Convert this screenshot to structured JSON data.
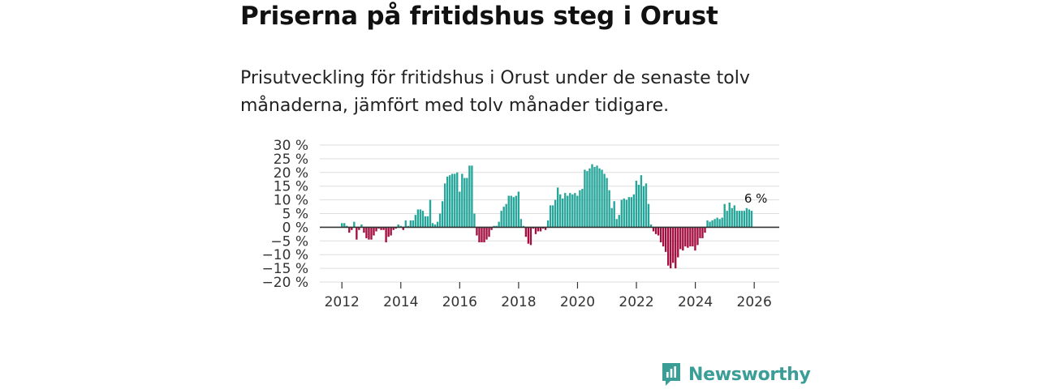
{
  "header": {
    "title": "Priserna på fritidshus steg i Orust",
    "subtitle": "Prisutveckling för fritidshus i Orust under de senaste tolv månaderna, jämfört med tolv månader tidigare."
  },
  "brand": {
    "name": "Newsworthy",
    "color": "#3a9e97"
  },
  "colors": {
    "positive": "#26a69a",
    "negative": "#a30e40",
    "grid": "#dddddd",
    "zero_line": "#333333"
  },
  "chart_data": {
    "type": "bar",
    "title": "Priserna på fritidshus steg i Orust",
    "ylabel": "",
    "xlabel": "",
    "ylim": [
      -20,
      30
    ],
    "yticks": [
      30,
      25,
      20,
      15,
      10,
      5,
      0,
      -5,
      -10,
      -15,
      -20
    ],
    "ytick_labels": [
      "30 %",
      "25 %",
      "20 %",
      "15 %",
      "10 %",
      "5 %",
      "0 %",
      "−5 %",
      "−10 %",
      "−15 %",
      "−20 %"
    ],
    "xticks": [
      2012,
      2014,
      2016,
      2018,
      2020,
      2022,
      2024,
      2026
    ],
    "xlim": [
      2011.25,
      2026.85
    ],
    "x_start": 2012,
    "x_step": 0.0833,
    "annotation": {
      "text": "6 %",
      "x": 2026.0
    },
    "values": [
      1.5,
      1.5,
      0.5,
      -2,
      -1,
      2,
      -4.5,
      -1,
      1,
      -2,
      -4,
      -4.5,
      -4.5,
      -3,
      -1.5,
      -0.5,
      -1,
      -1,
      -5.5,
      -3.5,
      -3,
      -1,
      -0.5,
      1,
      0.5,
      -1,
      2.5,
      0.5,
      2.5,
      2.5,
      4.5,
      6.5,
      6.5,
      6,
      4,
      4,
      10,
      1.5,
      1,
      2,
      5,
      9.5,
      16,
      18.5,
      19,
      19.5,
      19.5,
      20,
      13,
      19.5,
      18,
      18,
      22.5,
      22.5,
      5,
      -3,
      -5.5,
      -5.5,
      -5.5,
      -4.5,
      -3.5,
      -1,
      0.5,
      0.5,
      2,
      6,
      7.5,
      8.5,
      11.5,
      11.5,
      11,
      11.5,
      13,
      3,
      0.5,
      -3.5,
      -6,
      -6.5,
      -0.5,
      -2.5,
      -1.5,
      -1.5,
      -0.5,
      -1,
      2.5,
      8,
      8,
      10,
      14.5,
      12,
      10.5,
      12.5,
      11.5,
      12.5,
      12,
      12.5,
      11.5,
      13.5,
      14,
      21,
      20.5,
      21.5,
      23,
      22,
      22.5,
      21.5,
      21,
      19.5,
      18,
      13.5,
      7,
      9.5,
      3,
      4.5,
      10,
      10.5,
      10,
      11,
      11,
      12,
      17,
      15.5,
      19,
      15,
      16,
      8.5,
      1,
      -1.5,
      -2.5,
      -3,
      -5.5,
      -7,
      -9,
      -14,
      -15,
      -13,
      -15,
      -11,
      -8,
      -8.5,
      -7,
      -7.5,
      -7,
      -7,
      -8.5,
      -6.5,
      -4,
      -4,
      -2,
      2.5,
      2,
      2.5,
      3,
      3.5,
      3,
      3.5,
      8.5,
      6,
      9,
      7,
      8,
      6,
      6,
      6,
      6,
      7,
      6.5,
      6
    ]
  }
}
